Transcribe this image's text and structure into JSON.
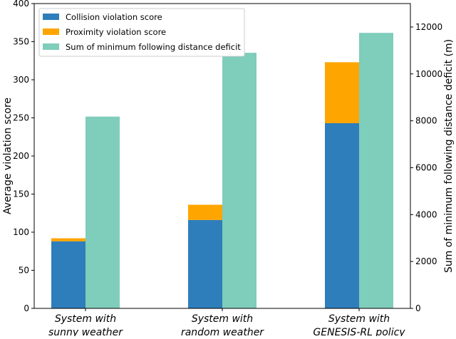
{
  "chart_data": {
    "type": "bar",
    "categories": [
      [
        "System with",
        "sunny weather"
      ],
      [
        "System with",
        "random weather"
      ],
      [
        "System with",
        "GENESIS-RL policy"
      ]
    ],
    "ylabel": "Average violation score",
    "ylabel_right": "Sum of minimum following distance deficit (m)",
    "ylim": [
      0,
      400
    ],
    "ylim_right": [
      0,
      13000
    ],
    "yticks": [
      0,
      50,
      100,
      150,
      200,
      250,
      300,
      350,
      400
    ],
    "yticks_right": [
      0,
      2000,
      4000,
      6000,
      8000,
      10000,
      12000
    ],
    "grid": false,
    "legend_position": "top-left",
    "series": [
      {
        "name": "Collision violation score",
        "axis": "left",
        "stack": "score",
        "color": "#2e7ebb",
        "values": [
          88,
          116,
          243
        ]
      },
      {
        "name": "Proximity violation score",
        "axis": "left",
        "stack": "score",
        "color": "#ffa500",
        "values": [
          4,
          20,
          80
        ]
      },
      {
        "name": "Sum of minimum following distance deficit",
        "axis": "right",
        "color": "#7fcdbb",
        "values": [
          8180,
          10900,
          11750
        ]
      }
    ]
  }
}
